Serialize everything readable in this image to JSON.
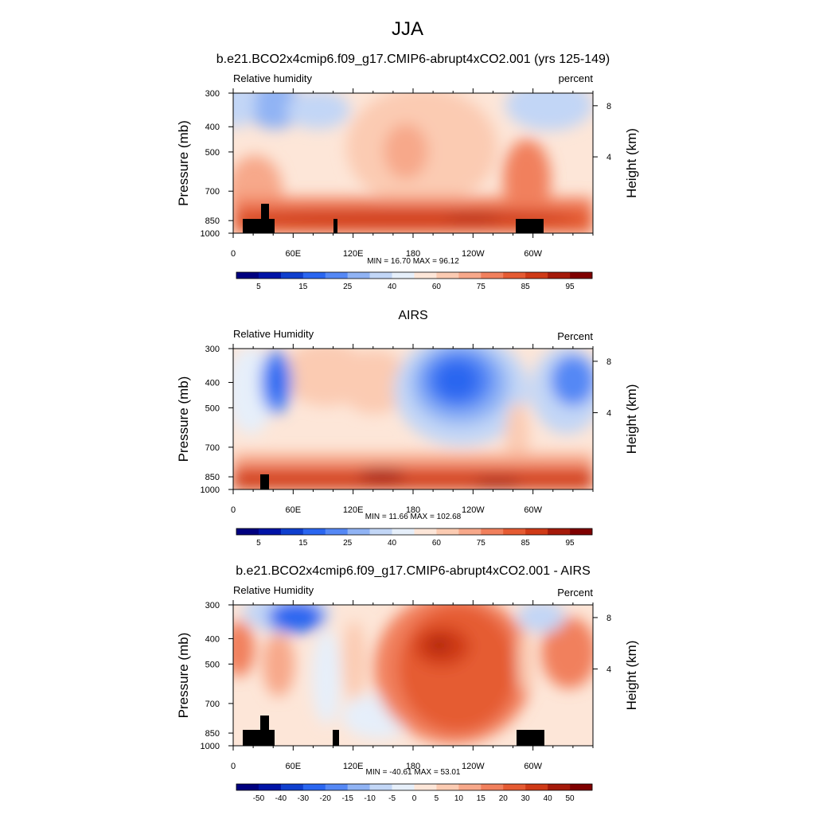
{
  "figure_title": "JJA",
  "chart_data": [
    {
      "type": "heatmap",
      "title": "b.e21.BCO2x4cmip6.f09_g17.CMIP6-abrupt4xCO2.001 (yrs 125-149)",
      "left_label": "Relative humidity",
      "right_label": "percent",
      "ylabel": "Pressure (mb)",
      "ylabel_right": "Height (km)",
      "pressure_ticks": [
        "300",
        "400",
        "500",
        "700",
        "850",
        "1000"
      ],
      "height_ticks": [
        "8",
        "4"
      ],
      "lon_ticks": [
        "0",
        "60E",
        "120E",
        "180",
        "120W",
        "60W"
      ],
      "stats": "MIN =  16.70  MAX =  96.12",
      "min": 16.7,
      "max": 96.12,
      "colorbar_labels": [
        "5",
        "15",
        "25",
        "40",
        "60",
        "75",
        "85",
        "95"
      ]
    },
    {
      "type": "heatmap",
      "title": "AIRS",
      "left_label": "Relative Humidity",
      "right_label": "Percent",
      "ylabel": "Pressure (mb)",
      "ylabel_right": "Height (km)",
      "pressure_ticks": [
        "300",
        "400",
        "500",
        "700",
        "850",
        "1000"
      ],
      "height_ticks": [
        "8",
        "4"
      ],
      "lon_ticks": [
        "0",
        "60E",
        "120E",
        "180",
        "120W",
        "60W"
      ],
      "stats": "MIN =  11.66  MAX = 102.68",
      "min": 11.66,
      "max": 102.68,
      "colorbar_labels": [
        "5",
        "15",
        "25",
        "40",
        "60",
        "75",
        "85",
        "95"
      ]
    },
    {
      "type": "heatmap",
      "title": "b.e21.BCO2x4cmip6.f09_g17.CMIP6-abrupt4xCO2.001 - AIRS",
      "left_label": "Relative Humidity",
      "right_label": "Percent",
      "ylabel": "Pressure (mb)",
      "ylabel_right": "Height (km)",
      "pressure_ticks": [
        "300",
        "400",
        "500",
        "700",
        "850",
        "1000"
      ],
      "height_ticks": [
        "8",
        "4"
      ],
      "lon_ticks": [
        "0",
        "60E",
        "120E",
        "180",
        "120W",
        "60W"
      ],
      "stats": "MIN = -40.61  MAX =  53.01",
      "min": -40.61,
      "max": 53.01,
      "colorbar_labels": [
        "-50",
        "-40",
        "-30",
        "-20",
        "-15",
        "-10",
        "-5",
        "0",
        "5",
        "10",
        "15",
        "20",
        "30",
        "40",
        "50"
      ]
    }
  ],
  "colorbar_colors": [
    "#00007f",
    "#0013a6",
    "#0f3fce",
    "#2a66f0",
    "#5588f5",
    "#90b3f4",
    "#c2d6f6",
    "#e6effa",
    "#fde6d8",
    "#fbcbb2",
    "#f7a88a",
    "#f1805d",
    "#e55b33",
    "#cf3a17",
    "#a51a0a",
    "#7f0000"
  ]
}
